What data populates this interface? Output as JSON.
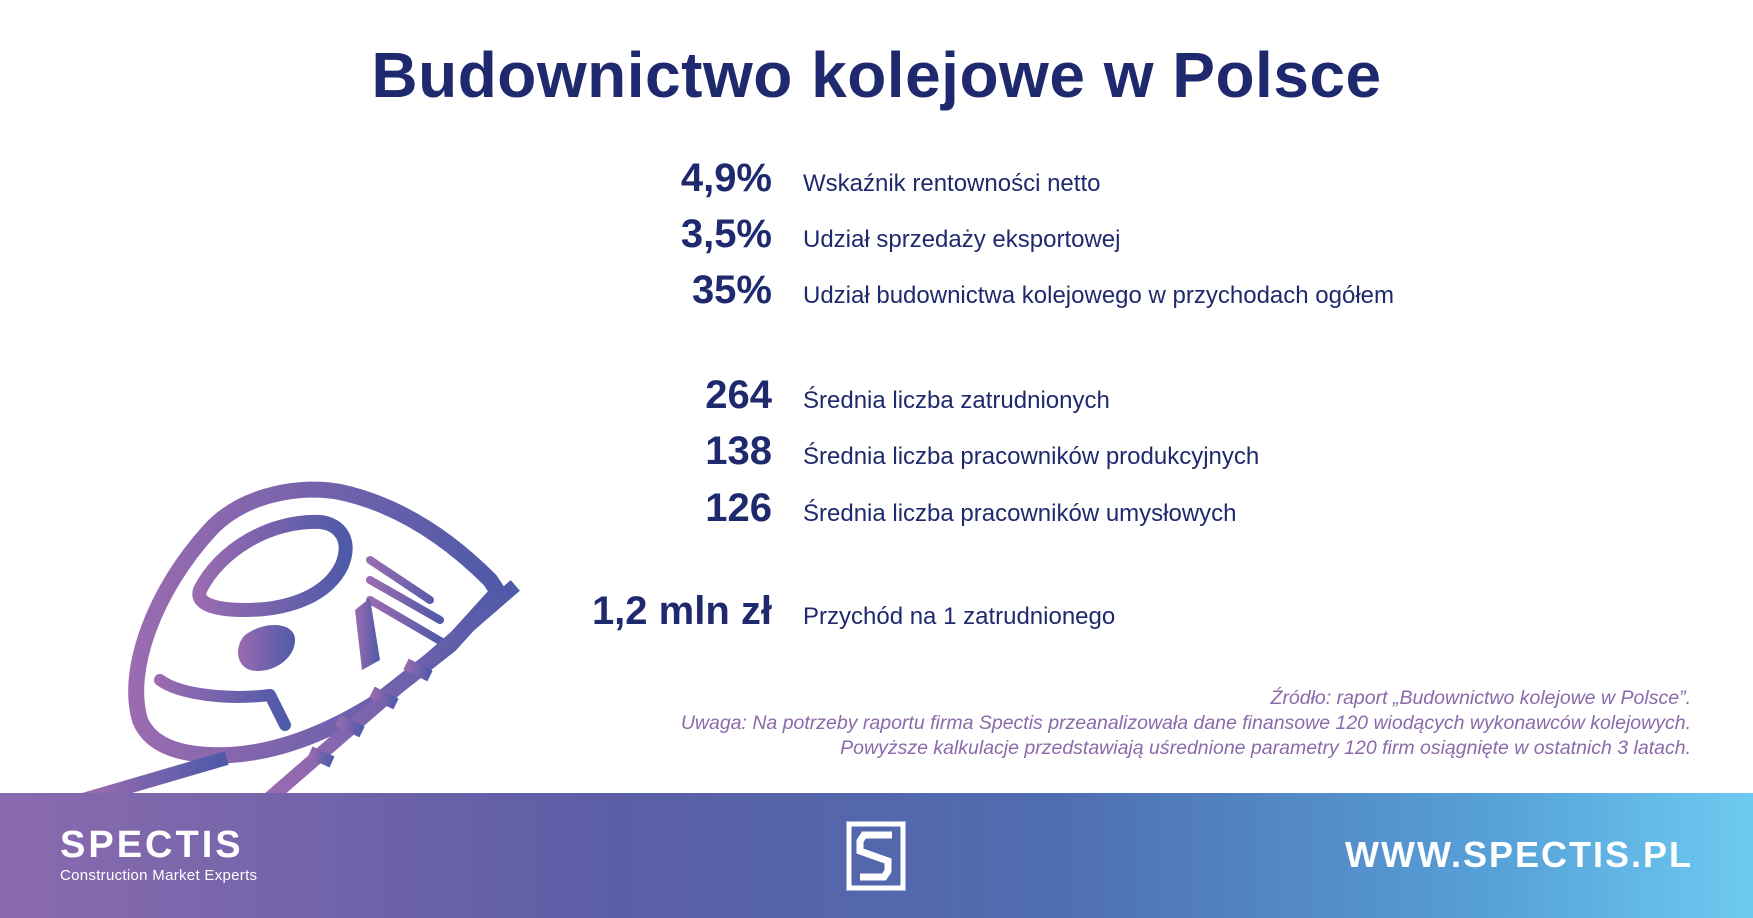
{
  "title": "Budownictwo kolejowe w Polsce",
  "stats": [
    {
      "value": "4,9%",
      "label": "Wskaźnik rentowności netto"
    },
    {
      "value": "3,5%",
      "label": "Udział sprzedaży eksportowej"
    },
    {
      "value": "35%",
      "label": "Udział budownictwa kolejowego w przychodach ogółem"
    },
    {
      "value": "264",
      "label": "Średnia liczba zatrudnionych"
    },
    {
      "value": "138",
      "label": "Średnia liczba pracowników produkcyjnych"
    },
    {
      "value": "126",
      "label": "Średnia liczba pracowników umysłowych"
    },
    {
      "value": "1,2 mln zł",
      "label": "Przychód na 1 zatrudnionego"
    }
  ],
  "notes": {
    "source": "Źródło: raport „Budownictwo kolejowe w Polsce”.",
    "note_line1": "Uwaga: Na potrzeby raportu firma Spectis przeanalizowała dane finansowe 120 wiodących wykonawców kolejowych.",
    "note_line2": "Powyższe kalkulacje przedstawiają uśrednione parametry 120 firm osiągnięte w ostatnich 3 latach."
  },
  "footer": {
    "brand_name": "SPECTIS",
    "brand_tagline": "Construction Market Experts",
    "website": "WWW.SPECTIS.PL"
  },
  "colors": {
    "title": "#1f2a6e",
    "notes": "#8a6aaa",
    "gradient_start": "#8b6aae",
    "gradient_end": "#6dcaf0"
  },
  "icons": {
    "illustration": "train-icon",
    "logo": "spectis-s-logo-icon"
  }
}
